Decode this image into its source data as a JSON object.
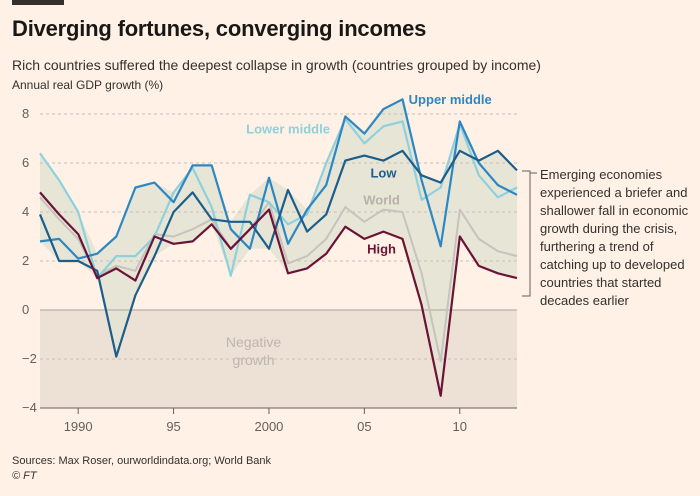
{
  "header": {
    "title": "Diverging fortunes, converging incomes",
    "subtitle": "Rich countries suffered the deepest collapse in growth (countries grouped by income)"
  },
  "footer": {
    "source": "Sources: Max Roser, ourworldindata.org; World Bank",
    "copyright": "© FT"
  },
  "annotation": "Emerging economies experienced a briefer and shallower fall in economic growth during the crisis, furthering a trend of catching up to developed countries that started decades earlier",
  "negative_label": [
    "Negative",
    "growth"
  ],
  "chart_data": {
    "type": "line",
    "title": "Diverging fortunes, converging incomes",
    "ylabel": "Annual real GDP growth (%)",
    "ylim": [
      -4,
      8
    ],
    "yticks": [
      8,
      6,
      4,
      2,
      0,
      -2,
      -4
    ],
    "xlim": [
      1988,
      2013
    ],
    "xticks": [
      1990,
      1995,
      2000,
      2005,
      2010
    ],
    "xtick_labels": [
      "1990",
      "95",
      "2000",
      "05",
      "10"
    ],
    "x": [
      1988,
      1989,
      1990,
      1991,
      1992,
      1993,
      1994,
      1995,
      1996,
      1997,
      1998,
      1999,
      2000,
      2001,
      2002,
      2003,
      2004,
      2005,
      2006,
      2007,
      2008,
      2009,
      2010,
      2011,
      2012,
      2013
    ],
    "series": [
      {
        "name": "Upper middle",
        "color": "#2e87c2",
        "values": [
          2.8,
          2.9,
          2.1,
          2.3,
          3.0,
          5.0,
          5.2,
          4.4,
          5.9,
          5.9,
          3.3,
          2.5,
          5.4,
          2.7,
          4.1,
          5.1,
          7.9,
          7.2,
          8.2,
          8.6,
          5.3,
          2.6,
          7.7,
          6.0,
          5.1,
          4.7
        ]
      },
      {
        "name": "Lower middle",
        "color": "#8ed1dd",
        "values": [
          6.4,
          5.3,
          4.0,
          1.3,
          2.2,
          2.2,
          3.0,
          4.8,
          5.8,
          4.2,
          1.4,
          4.7,
          4.4,
          3.5,
          3.9,
          6.0,
          7.8,
          6.8,
          7.5,
          7.7,
          4.5,
          5.0,
          7.6,
          5.5,
          4.6,
          5.0
        ]
      },
      {
        "name": "Low",
        "color": "#1d5d8c",
        "values": [
          3.9,
          2.0,
          2.0,
          1.6,
          -1.9,
          0.6,
          2.2,
          4.0,
          4.8,
          3.7,
          3.6,
          3.6,
          2.5,
          4.9,
          3.2,
          3.9,
          6.1,
          6.3,
          6.1,
          6.5,
          5.5,
          5.2,
          6.5,
          6.1,
          6.5,
          5.7
        ]
      },
      {
        "name": "World",
        "color": "#c7c2bb",
        "values": [
          4.6,
          3.7,
          2.9,
          1.4,
          1.8,
          1.6,
          3.1,
          3.0,
          3.3,
          3.7,
          2.5,
          3.3,
          4.4,
          1.9,
          2.2,
          2.9,
          4.2,
          3.6,
          4.1,
          4.0,
          1.5,
          -2.1,
          4.1,
          2.9,
          2.4,
          2.2
        ]
      },
      {
        "name": "High",
        "color": "#6b1336",
        "values": [
          4.8,
          3.9,
          3.1,
          1.3,
          1.7,
          1.2,
          3.0,
          2.7,
          2.8,
          3.5,
          2.5,
          3.3,
          4.1,
          1.5,
          1.7,
          2.3,
          3.4,
          2.9,
          3.2,
          2.9,
          0.2,
          -3.5,
          3.0,
          1.8,
          1.5,
          1.3
        ]
      }
    ]
  }
}
